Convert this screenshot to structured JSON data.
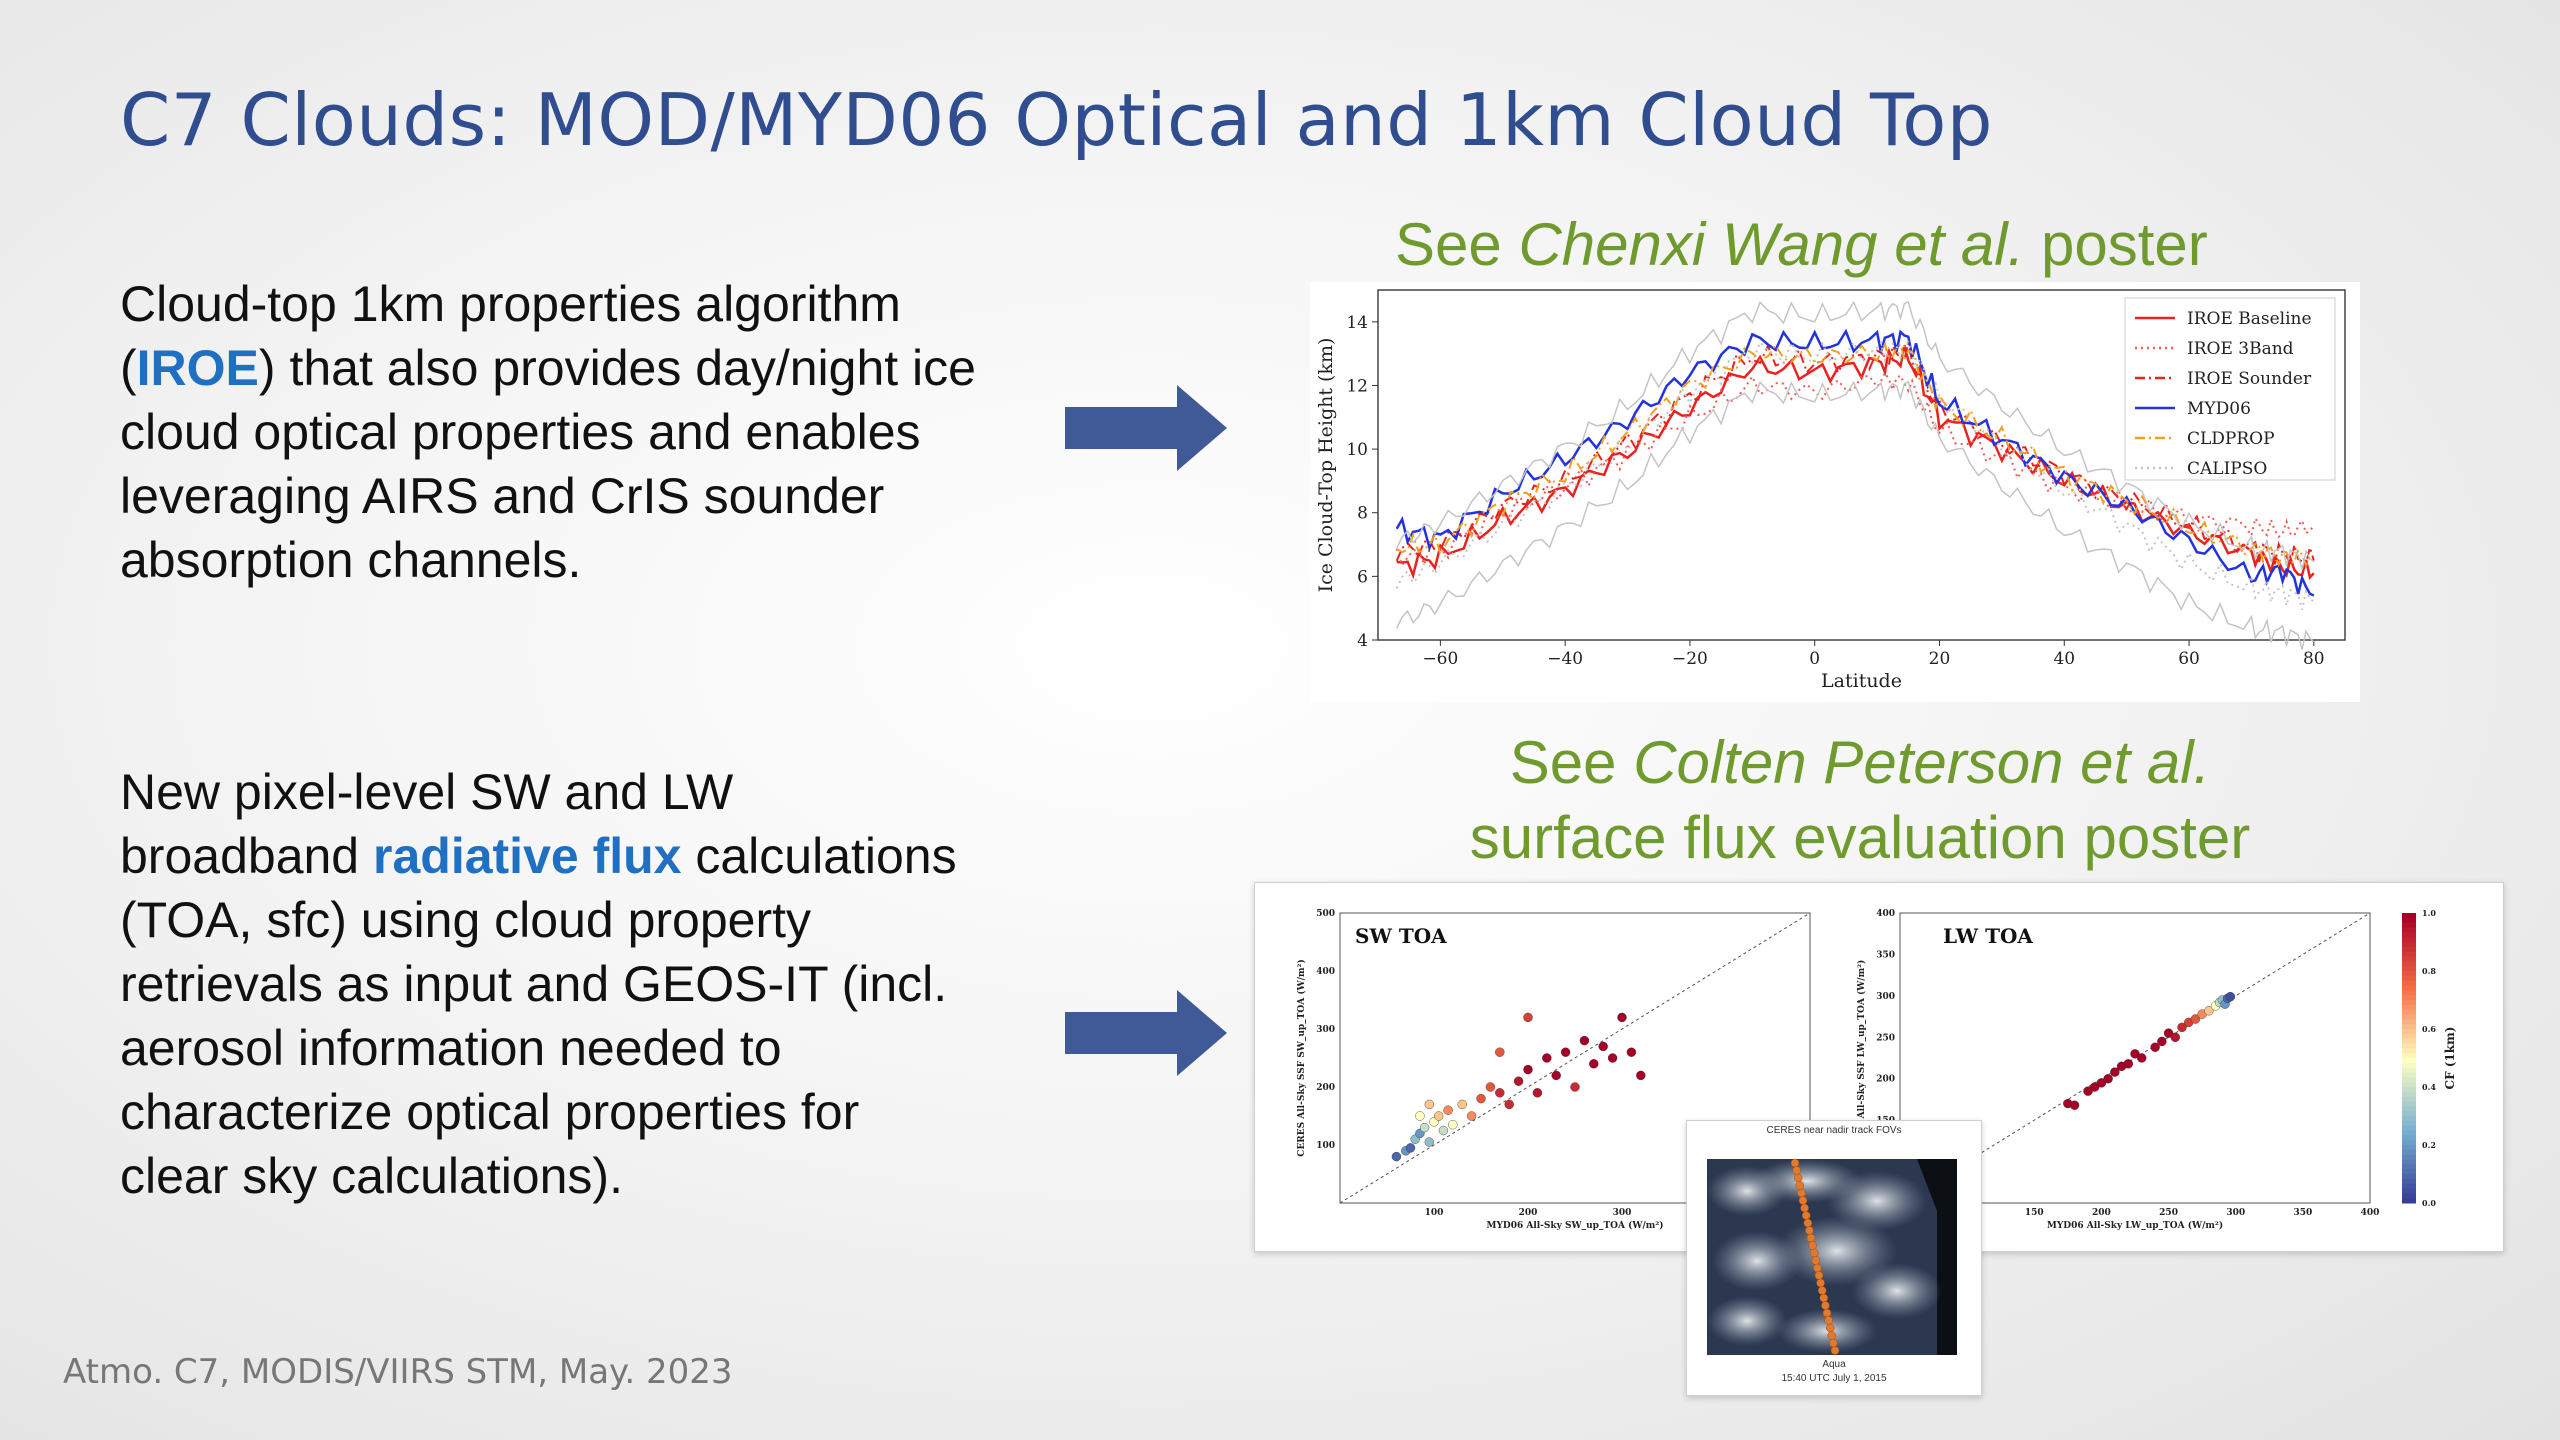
{
  "slide": {
    "title": "C7 Clouds: MOD/MYD06 Optical and 1km Cloud Top",
    "footer": "Atmo. C7, MODIS/VIIRS STM, May. 2023"
  },
  "para1": {
    "line1": "Cloud-top 1km properties algorithm",
    "l2_pre": "(",
    "l2_hl": "IROE",
    "l2_post": ") that also provides day/night ice",
    "line3": "cloud optical properties and enables",
    "line4": "leveraging AIRS and CrIS sounder",
    "line5": "absorption channels."
  },
  "para2": {
    "line1": "New pixel-level SW and LW",
    "l2_pre": "broadband ",
    "l2_hl": "radiative flux",
    "l2_post": " calculations",
    "line3": "(TOA, sfc) using cloud property",
    "line4": "retrievals as input and GEOS-IT (incl.",
    "line5": "aerosol information needed to",
    "line6": "characterize optical properties for",
    "line7": "clear sky calculations)."
  },
  "caption1": {
    "pre": "See ",
    "italic": "Chenxi Wang et al.",
    "post": " poster"
  },
  "caption2": {
    "pre": "See ",
    "italic": "Colten Peterson et al.",
    "line2": "surface flux evaluation poster"
  },
  "colors": {
    "title": "#2f4d8f",
    "highlight": "#1f6fc2",
    "caption": "#6f9a2d",
    "arrow": "#3f5a97"
  },
  "icons": {
    "arrow1": "right-arrow-icon",
    "arrow2": "right-arrow-icon"
  },
  "chart_data": [
    {
      "type": "line",
      "xlabel": "Latitude",
      "ylabel": "Ice Cloud-Top Height (km)",
      "xlim": [
        -70,
        85
      ],
      "ylim": [
        4,
        15
      ],
      "xticks": [
        -60,
        -40,
        -20,
        0,
        20,
        40,
        60,
        80
      ],
      "yticks": [
        4,
        6,
        8,
        10,
        12,
        14
      ],
      "legend_position": "top-right",
      "grid": false,
      "x": [
        -67,
        -60,
        -50,
        -40,
        -30,
        -20,
        -10,
        0,
        10,
        15,
        20,
        30,
        40,
        50,
        60,
        70,
        75,
        80
      ],
      "series": [
        {
          "name": "IROE Baseline",
          "color": "#e8231f",
          "style": "solid",
          "values": [
            6.3,
            6.6,
            7.8,
            8.7,
            9.9,
            11.3,
            12.6,
            12.4,
            12.7,
            12.9,
            11.0,
            10.0,
            9.0,
            8.2,
            7.4,
            6.7,
            6.3,
            6.1
          ]
        },
        {
          "name": "IROE 3Band",
          "color": "#ef5a55",
          "style": "dotted",
          "values": [
            6.6,
            6.8,
            8.0,
            8.8,
            9.9,
            11.0,
            12.0,
            11.8,
            12.2,
            12.1,
            10.6,
            9.7,
            8.8,
            8.2,
            7.8,
            7.6,
            7.4,
            7.6
          ]
        },
        {
          "name": "IROE Sounder",
          "color": "#e8231f",
          "style": "dashdot",
          "values": [
            6.8,
            7.0,
            8.2,
            9.0,
            10.2,
            11.7,
            12.9,
            12.7,
            12.9,
            13.0,
            11.3,
            10.2,
            9.2,
            8.4,
            7.6,
            6.9,
            6.7,
            6.5
          ]
        },
        {
          "name": "MYD06",
          "color": "#2233dd",
          "style": "solid",
          "values": [
            7.5,
            7.2,
            8.6,
            9.7,
            10.9,
            12.4,
            13.4,
            13.3,
            13.4,
            13.5,
            11.5,
            10.3,
            9.1,
            8.2,
            7.1,
            6.0,
            6.2,
            5.4
          ]
        },
        {
          "name": "CLDPROP",
          "color": "#f0a020",
          "style": "dashdot",
          "values": [
            6.9,
            7.0,
            8.3,
            9.2,
            10.5,
            12.0,
            13.0,
            12.9,
            13.0,
            13.1,
            11.4,
            10.3,
            9.2,
            8.4,
            7.5,
            6.9,
            6.6,
            6.6
          ]
        },
        {
          "name": "CALIPSO",
          "color": "#c4c4c4",
          "style": "dotted",
          "values": [
            5.8,
            6.4,
            7.6,
            8.8,
            10.1,
            11.8,
            13.1,
            12.9,
            13.1,
            13.2,
            11.6,
            10.1,
            8.7,
            7.6,
            6.4,
            5.6,
            5.5,
            5.2
          ]
        }
      ]
    },
    {
      "type": "scatter",
      "title": "SW TOA",
      "xlabel": "MYD06 All-Sky SW_up_TOA (W/m²)",
      "ylabel": "CERES All-Sky SSF SW_up_TOA (W/m²)",
      "xlim": [
        0,
        500
      ],
      "ylim": [
        0,
        500
      ],
      "xticks": [
        100,
        200,
        300
      ],
      "yticks": [
        100,
        200,
        300,
        400,
        500
      ],
      "points": [
        [
          70,
          90,
          0.2
        ],
        [
          75,
          95,
          0.1
        ],
        [
          80,
          110,
          0.3
        ],
        [
          85,
          120,
          0.2
        ],
        [
          90,
          130,
          0.4
        ],
        [
          95,
          105,
          0.3
        ],
        [
          100,
          140,
          0.5
        ],
        [
          105,
          150,
          0.6
        ],
        [
          110,
          125,
          0.4
        ],
        [
          115,
          160,
          0.7
        ],
        [
          120,
          135,
          0.5
        ],
        [
          130,
          170,
          0.6
        ],
        [
          140,
          150,
          0.7
        ],
        [
          150,
          180,
          0.8
        ],
        [
          160,
          200,
          0.8
        ],
        [
          170,
          190,
          0.9
        ],
        [
          180,
          170,
          0.9
        ],
        [
          190,
          210,
          0.95
        ],
        [
          200,
          230,
          1.0
        ],
        [
          210,
          190,
          0.95
        ],
        [
          220,
          250,
          1.0
        ],
        [
          230,
          220,
          1.0
        ],
        [
          240,
          260,
          1.0
        ],
        [
          250,
          200,
          0.9
        ],
        [
          260,
          280,
          1.0
        ],
        [
          270,
          240,
          1.0
        ],
        [
          280,
          270,
          1.0
        ],
        [
          290,
          250,
          1.0
        ],
        [
          300,
          320,
          1.0
        ],
        [
          310,
          260,
          1.0
        ],
        [
          320,
          220,
          1.0
        ],
        [
          200,
          320,
          0.85
        ],
        [
          170,
          260,
          0.8
        ],
        [
          85,
          150,
          0.5
        ],
        [
          95,
          170,
          0.6
        ],
        [
          60,
          80,
          0.1
        ]
      ],
      "one_to_one_line": true
    },
    {
      "type": "scatter",
      "title": "LW TOA",
      "xlabel": "MYD06 All-Sky LW_up_TOA (W/m²)",
      "ylabel": "CERES All-Sky SSF LW_up_TOA (W/m²)",
      "xlim": [
        50,
        400
      ],
      "ylim": [
        50,
        400
      ],
      "xticks": [
        100,
        150,
        200,
        250,
        300,
        350,
        400
      ],
      "yticks": [
        100,
        150,
        200,
        250,
        300,
        350,
        400
      ],
      "points": [
        [
          175,
          170,
          1.0
        ],
        [
          180,
          168,
          1.0
        ],
        [
          190,
          185,
          1.0
        ],
        [
          195,
          190,
          1.0
        ],
        [
          200,
          195,
          1.0
        ],
        [
          205,
          200,
          1.0
        ],
        [
          210,
          208,
          1.0
        ],
        [
          215,
          215,
          1.0
        ],
        [
          220,
          218,
          1.0
        ],
        [
          225,
          230,
          1.0
        ],
        [
          230,
          225,
          1.0
        ],
        [
          240,
          238,
          1.0
        ],
        [
          245,
          245,
          1.0
        ],
        [
          250,
          255,
          1.0
        ],
        [
          255,
          250,
          0.95
        ],
        [
          260,
          262,
          0.9
        ],
        [
          265,
          268,
          0.85
        ],
        [
          270,
          272,
          0.8
        ],
        [
          275,
          278,
          0.7
        ],
        [
          280,
          282,
          0.6
        ],
        [
          285,
          288,
          0.5
        ],
        [
          288,
          292,
          0.4
        ],
        [
          290,
          295,
          0.3
        ],
        [
          292,
          290,
          0.2
        ],
        [
          294,
          297,
          0.1
        ],
        [
          296,
          299,
          0.05
        ]
      ],
      "colorbar": {
        "label": "CF (1km)",
        "ticks": [
          "0.0",
          "0.2",
          "0.4",
          "0.6",
          "0.8",
          "1.0"
        ]
      },
      "one_to_one_line": true
    }
  ],
  "inset": {
    "title": "CERES near nadir track FOVs",
    "label1": "Aqua",
    "label2": "15:40 UTC July 1, 2015"
  }
}
